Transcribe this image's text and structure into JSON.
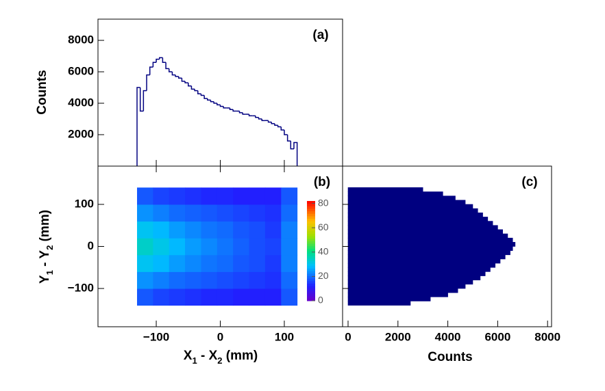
{
  "chart_data": [
    {
      "type": "histogram",
      "label": "(a)",
      "y_label": "Counts",
      "color": "#000080",
      "xlim": [
        -191,
        191
      ],
      "ylim": [
        0,
        9350
      ],
      "yticks": [
        2000,
        4000,
        6000,
        8000
      ],
      "bins": [
        -130,
        -125,
        -120,
        -115,
        -110,
        -105,
        -100,
        -95,
        -90,
        -85,
        -80,
        -75,
        -70,
        -65,
        -60,
        -55,
        -50,
        -45,
        -40,
        -35,
        -30,
        -25,
        -20,
        -15,
        -10,
        -5,
        0,
        5,
        10,
        15,
        20,
        25,
        30,
        35,
        40,
        45,
        50,
        55,
        60,
        65,
        70,
        75,
        80,
        85,
        90,
        95,
        100,
        105,
        110,
        115,
        120
      ],
      "counts": [
        5000,
        3500,
        4800,
        5800,
        6300,
        6600,
        6800,
        6900,
        6600,
        6200,
        6000,
        5800,
        5700,
        5600,
        5400,
        5300,
        5100,
        4900,
        4800,
        4600,
        4500,
        4300,
        4200,
        4100,
        4000,
        3900,
        3800,
        3700,
        3700,
        3600,
        3500,
        3500,
        3400,
        3300,
        3300,
        3200,
        3200,
        3100,
        3000,
        2900,
        2900,
        2800,
        2700,
        2600,
        2500,
        2300,
        2000,
        1600,
        1100,
        1500
      ]
    },
    {
      "type": "heatmap",
      "label": "(b)",
      "x_label": "X1 - X2 (mm)",
      "y_label": "Y1 - Y2 (mm)",
      "xlim": [
        -191,
        191
      ],
      "ylim": [
        -191,
        191
      ],
      "xticks": [
        {
          "value": -100,
          "label": "−100"
        },
        0,
        100
      ],
      "yticks": [
        {
          "value": -100,
          "label": "−100"
        },
        0,
        100
      ],
      "zlim": [
        0,
        82
      ],
      "zticks": [
        0,
        20,
        40,
        60,
        80
      ],
      "xbins": [
        -130,
        -105,
        -80,
        -55,
        -30,
        -5,
        20,
        45,
        70,
        95,
        120
      ],
      "ybins": [
        -140,
        -100,
        -60,
        -20,
        20,
        60,
        100,
        140
      ],
      "z": [
        [
          18,
          16,
          15,
          14,
          13,
          13,
          12,
          12,
          12,
          18
        ],
        [
          24,
          22,
          20,
          19,
          18,
          17,
          16,
          15,
          14,
          20
        ],
        [
          30,
          28,
          25,
          23,
          21,
          20,
          18,
          17,
          15,
          22
        ],
        [
          34,
          31,
          28,
          25,
          23,
          21,
          19,
          17,
          16,
          22
        ],
        [
          30,
          28,
          25,
          23,
          21,
          20,
          18,
          17,
          15,
          22
        ],
        [
          24,
          22,
          20,
          19,
          18,
          17,
          16,
          15,
          14,
          20
        ],
        [
          18,
          16,
          15,
          14,
          13,
          13,
          12,
          12,
          12,
          18
        ]
      ]
    },
    {
      "type": "histogram",
      "orientation": "horizontal",
      "label": "(c)",
      "x_label": "Counts",
      "color": "#000080",
      "xlim": [
        -220,
        8160
      ],
      "xticks": [
        0,
        2000,
        4000,
        6000,
        8000
      ],
      "ylim": [
        -191,
        191
      ],
      "bins": [
        -140,
        -130,
        -120,
        -110,
        -100,
        -90,
        -80,
        -70,
        -60,
        -50,
        -40,
        -30,
        -20,
        -10,
        0,
        10,
        20,
        30,
        40,
        50,
        60,
        70,
        80,
        90,
        100,
        110,
        120,
        130,
        140
      ],
      "counts": [
        2500,
        3300,
        4000,
        4400,
        4700,
        5000,
        5300,
        5500,
        5700,
        5900,
        6100,
        6300,
        6500,
        6600,
        6700,
        6600,
        6400,
        6200,
        6000,
        5800,
        5600,
        5400,
        5200,
        5000,
        4700,
        4300,
        3800,
        3000
      ]
    }
  ]
}
